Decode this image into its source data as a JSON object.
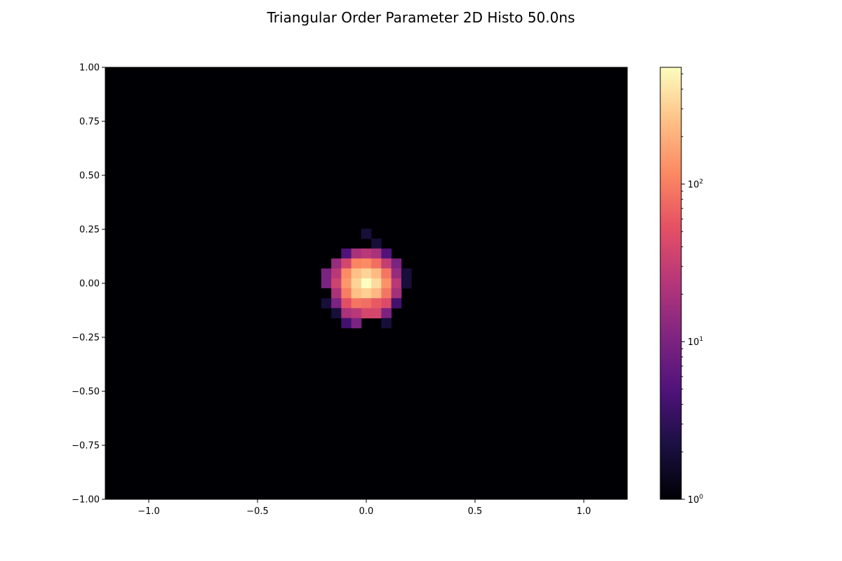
{
  "chart_data": {
    "type": "heatmap",
    "title": "Triangular Order Parameter 2D Histo 50.0ns",
    "xlabel": "",
    "ylabel": "",
    "xlim": [
      -1.2,
      1.2
    ],
    "ylim": [
      -1.0,
      1.0
    ],
    "xticks": [
      -1.0,
      -0.5,
      0.0,
      0.5,
      1.0
    ],
    "xtick_labels": [
      "−1.0",
      "−0.5",
      "0.0",
      "0.5",
      "1.0"
    ],
    "yticks": [
      1.0,
      0.75,
      0.5,
      0.25,
      0.0,
      -0.25,
      -0.5,
      -0.75,
      -1.0
    ],
    "ytick_labels": [
      "1.00",
      "0.75",
      "0.50",
      "0.25",
      "0.00",
      "−0.25",
      "−0.50",
      "−0.75",
      "−1.00"
    ],
    "colormap": "magma",
    "background_color": "#000004",
    "colorbar": {
      "scale": "log",
      "range": [
        1,
        550
      ],
      "major_ticks": [
        1,
        10,
        100
      ],
      "tick_labels": [
        {
          "base": "10",
          "exp": "0"
        },
        {
          "base": "10",
          "exp": "1"
        },
        {
          "base": "10",
          "exp": "2"
        }
      ]
    },
    "bin_width": 0.046,
    "bin_height": 0.046,
    "bins": [
      {
        "x": 0.0,
        "y": 0.23,
        "count": 2
      },
      {
        "x": 0.046,
        "y": 0.184,
        "count": 2
      },
      {
        "x": -0.092,
        "y": 0.138,
        "count": 5
      },
      {
        "x": -0.046,
        "y": 0.138,
        "count": 20
      },
      {
        "x": 0.0,
        "y": 0.138,
        "count": 25
      },
      {
        "x": 0.046,
        "y": 0.138,
        "count": 20
      },
      {
        "x": 0.092,
        "y": 0.138,
        "count": 5
      },
      {
        "x": -0.138,
        "y": 0.092,
        "count": 15
      },
      {
        "x": -0.092,
        "y": 0.092,
        "count": 40
      },
      {
        "x": -0.046,
        "y": 0.092,
        "count": 110
      },
      {
        "x": 0.0,
        "y": 0.092,
        "count": 120
      },
      {
        "x": 0.046,
        "y": 0.092,
        "count": 80
      },
      {
        "x": 0.092,
        "y": 0.092,
        "count": 30
      },
      {
        "x": 0.138,
        "y": 0.092,
        "count": 10
      },
      {
        "x": -0.184,
        "y": 0.046,
        "count": 10
      },
      {
        "x": -0.138,
        "y": 0.046,
        "count": 25
      },
      {
        "x": -0.092,
        "y": 0.046,
        "count": 120
      },
      {
        "x": -0.046,
        "y": 0.046,
        "count": 250
      },
      {
        "x": 0.0,
        "y": 0.046,
        "count": 320
      },
      {
        "x": 0.046,
        "y": 0.046,
        "count": 230
      },
      {
        "x": 0.092,
        "y": 0.046,
        "count": 90
      },
      {
        "x": 0.138,
        "y": 0.046,
        "count": 15
      },
      {
        "x": 0.184,
        "y": 0.046,
        "count": 2
      },
      {
        "x": -0.184,
        "y": 0.0,
        "count": 10
      },
      {
        "x": -0.138,
        "y": 0.0,
        "count": 35
      },
      {
        "x": -0.092,
        "y": 0.0,
        "count": 140
      },
      {
        "x": -0.046,
        "y": 0.0,
        "count": 320
      },
      {
        "x": 0.0,
        "y": 0.0,
        "count": 550
      },
      {
        "x": 0.046,
        "y": 0.0,
        "count": 350
      },
      {
        "x": 0.092,
        "y": 0.0,
        "count": 130
      },
      {
        "x": 0.138,
        "y": 0.0,
        "count": 25
      },
      {
        "x": 0.184,
        "y": 0.0,
        "count": 2
      },
      {
        "x": -0.184,
        "y": -0.046,
        "count": 1
      },
      {
        "x": -0.138,
        "y": -0.046,
        "count": 20
      },
      {
        "x": -0.092,
        "y": -0.046,
        "count": 100
      },
      {
        "x": -0.046,
        "y": -0.046,
        "count": 250
      },
      {
        "x": 0.0,
        "y": -0.046,
        "count": 300
      },
      {
        "x": 0.046,
        "y": -0.046,
        "count": 220
      },
      {
        "x": 0.092,
        "y": -0.046,
        "count": 90
      },
      {
        "x": 0.138,
        "y": -0.046,
        "count": 18
      },
      {
        "x": -0.184,
        "y": -0.092,
        "count": 2
      },
      {
        "x": -0.138,
        "y": -0.092,
        "count": 10
      },
      {
        "x": -0.092,
        "y": -0.092,
        "count": 50
      },
      {
        "x": -0.046,
        "y": -0.092,
        "count": 90
      },
      {
        "x": 0.0,
        "y": -0.092,
        "count": 80
      },
      {
        "x": 0.046,
        "y": -0.092,
        "count": 60
      },
      {
        "x": 0.092,
        "y": -0.092,
        "count": 45
      },
      {
        "x": 0.138,
        "y": -0.092,
        "count": 4
      },
      {
        "x": -0.138,
        "y": -0.138,
        "count": 2
      },
      {
        "x": -0.092,
        "y": -0.138,
        "count": 20
      },
      {
        "x": -0.046,
        "y": -0.138,
        "count": 25
      },
      {
        "x": 0.0,
        "y": -0.138,
        "count": 40
      },
      {
        "x": 0.046,
        "y": -0.138,
        "count": 40
      },
      {
        "x": 0.092,
        "y": -0.138,
        "count": 10
      },
      {
        "x": 0.184,
        "y": -0.138,
        "count": 1
      },
      {
        "x": -0.092,
        "y": -0.184,
        "count": 4
      },
      {
        "x": -0.046,
        "y": -0.184,
        "count": 10
      },
      {
        "x": 0.092,
        "y": -0.184,
        "count": 2
      }
    ]
  }
}
